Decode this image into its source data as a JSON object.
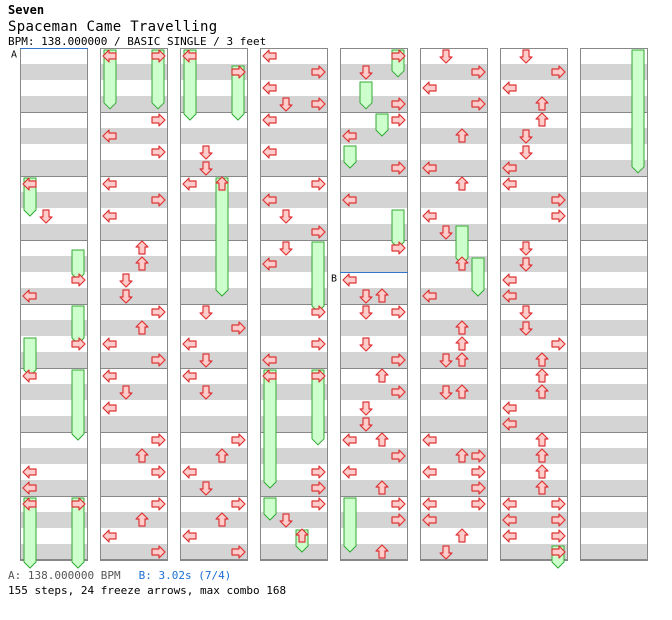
{
  "song": {
    "artist": "Seven",
    "title": "Spaceman Came Travelling",
    "info": "BPM: 138.000000 / BASIC SINGLE / 3 feet"
  },
  "markers": [
    {
      "label": "A",
      "column": 0,
      "beat": 0
    },
    {
      "label": "B",
      "column": 4,
      "beat": 14
    }
  ],
  "legend": {
    "a": "A: 138.000000 BPM",
    "b": "B: 3.02s (7/4)"
  },
  "summary": "155 steps, 24 freeze arrows, max combo 168",
  "colors": {
    "stripe": "#d4d4d4",
    "arrow_fill": "#ffcccc",
    "arrow_stroke": "#dd3333",
    "freeze_fill": "#ccffcc",
    "freeze_stroke": "#33aa33",
    "marker_line": "#3377cc"
  },
  "chart": {
    "beats_per_column": 32,
    "lanes": [
      "left",
      "down",
      "up",
      "right"
    ],
    "notes": [
      {
        "c": 0,
        "b": 8,
        "l": "left"
      },
      {
        "c": 0,
        "b": 10,
        "l": "down"
      },
      {
        "c": 0,
        "b": 14,
        "l": "right"
      },
      {
        "c": 0,
        "b": 15,
        "l": "left"
      },
      {
        "c": 0,
        "b": 18,
        "l": "right"
      },
      {
        "c": 0,
        "b": 20,
        "l": "left"
      },
      {
        "c": 0,
        "b": 26,
        "l": "left"
      },
      {
        "c": 0,
        "b": 27,
        "l": "left"
      },
      {
        "c": 0,
        "b": 28,
        "l": "left"
      },
      {
        "c": 0,
        "b": 28,
        "l": "right"
      },
      {
        "c": 1,
        "b": 0,
        "l": "left"
      },
      {
        "c": 1,
        "b": 0,
        "l": "right"
      },
      {
        "c": 1,
        "b": 4,
        "l": "right"
      },
      {
        "c": 1,
        "b": 5,
        "l": "left"
      },
      {
        "c": 1,
        "b": 6,
        "l": "right"
      },
      {
        "c": 1,
        "b": 8,
        "l": "left"
      },
      {
        "c": 1,
        "b": 9,
        "l": "right"
      },
      {
        "c": 1,
        "b": 10,
        "l": "left"
      },
      {
        "c": 1,
        "b": 12,
        "l": "up"
      },
      {
        "c": 1,
        "b": 13,
        "l": "up"
      },
      {
        "c": 1,
        "b": 14,
        "l": "down"
      },
      {
        "c": 1,
        "b": 15,
        "l": "down"
      },
      {
        "c": 1,
        "b": 16,
        "l": "right"
      },
      {
        "c": 1,
        "b": 17,
        "l": "up"
      },
      {
        "c": 1,
        "b": 18,
        "l": "left"
      },
      {
        "c": 1,
        "b": 19,
        "l": "right"
      },
      {
        "c": 1,
        "b": 20,
        "l": "left"
      },
      {
        "c": 1,
        "b": 21,
        "l": "down"
      },
      {
        "c": 1,
        "b": 22,
        "l": "left"
      },
      {
        "c": 1,
        "b": 24,
        "l": "right"
      },
      {
        "c": 1,
        "b": 25,
        "l": "up"
      },
      {
        "c": 1,
        "b": 26,
        "l": "right"
      },
      {
        "c": 1,
        "b": 28,
        "l": "right"
      },
      {
        "c": 1,
        "b": 29,
        "l": "up"
      },
      {
        "c": 1,
        "b": 30,
        "l": "left"
      },
      {
        "c": 1,
        "b": 31,
        "l": "right"
      },
      {
        "c": 2,
        "b": 0,
        "l": "left"
      },
      {
        "c": 2,
        "b": 1,
        "l": "right"
      },
      {
        "c": 2,
        "b": 6,
        "l": "down"
      },
      {
        "c": 2,
        "b": 7,
        "l": "down"
      },
      {
        "c": 2,
        "b": 8,
        "l": "left"
      },
      {
        "c": 2,
        "b": 8,
        "l": "up"
      },
      {
        "c": 2,
        "b": 16,
        "l": "down"
      },
      {
        "c": 2,
        "b": 17,
        "l": "right"
      },
      {
        "c": 2,
        "b": 18,
        "l": "left"
      },
      {
        "c": 2,
        "b": 19,
        "l": "down"
      },
      {
        "c": 2,
        "b": 20,
        "l": "left"
      },
      {
        "c": 2,
        "b": 21,
        "l": "down"
      },
      {
        "c": 2,
        "b": 24,
        "l": "right"
      },
      {
        "c": 2,
        "b": 25,
        "l": "up"
      },
      {
        "c": 2,
        "b": 26,
        "l": "left"
      },
      {
        "c": 2,
        "b": 27,
        "l": "down"
      },
      {
        "c": 2,
        "b": 28,
        "l": "right"
      },
      {
        "c": 2,
        "b": 29,
        "l": "up"
      },
      {
        "c": 2,
        "b": 30,
        "l": "left"
      },
      {
        "c": 2,
        "b": 31,
        "l": "right"
      },
      {
        "c": 3,
        "b": 0,
        "l": "left"
      },
      {
        "c": 3,
        "b": 1,
        "l": "right"
      },
      {
        "c": 3,
        "b": 2,
        "l": "left"
      },
      {
        "c": 3,
        "b": 3,
        "l": "down"
      },
      {
        "c": 3,
        "b": 3,
        "l": "right"
      },
      {
        "c": 3,
        "b": 4,
        "l": "left"
      },
      {
        "c": 3,
        "b": 6,
        "l": "left"
      },
      {
        "c": 3,
        "b": 8,
        "l": "right"
      },
      {
        "c": 3,
        "b": 9,
        "l": "left"
      },
      {
        "c": 3,
        "b": 10,
        "l": "down"
      },
      {
        "c": 3,
        "b": 11,
        "l": "right"
      },
      {
        "c": 3,
        "b": 12,
        "l": "down"
      },
      {
        "c": 3,
        "b": 13,
        "l": "left"
      },
      {
        "c": 3,
        "b": 16,
        "l": "right"
      },
      {
        "c": 3,
        "b": 18,
        "l": "right"
      },
      {
        "c": 3,
        "b": 19,
        "l": "left"
      },
      {
        "c": 3,
        "b": 20,
        "l": "left"
      },
      {
        "c": 3,
        "b": 20,
        "l": "right"
      },
      {
        "c": 3,
        "b": 26,
        "l": "right"
      },
      {
        "c": 3,
        "b": 27,
        "l": "right"
      },
      {
        "c": 3,
        "b": 28,
        "l": "right"
      },
      {
        "c": 3,
        "b": 29,
        "l": "down"
      },
      {
        "c": 3,
        "b": 30,
        "l": "up"
      },
      {
        "c": 4,
        "b": 0,
        "l": "right"
      },
      {
        "c": 4,
        "b": 1,
        "l": "down"
      },
      {
        "c": 4,
        "b": 3,
        "l": "right"
      },
      {
        "c": 4,
        "b": 4,
        "l": "right"
      },
      {
        "c": 4,
        "b": 5,
        "l": "left"
      },
      {
        "c": 4,
        "b": 7,
        "l": "right"
      },
      {
        "c": 4,
        "b": 9,
        "l": "left"
      },
      {
        "c": 4,
        "b": 12,
        "l": "right"
      },
      {
        "c": 4,
        "b": 14,
        "l": "left"
      },
      {
        "c": 4,
        "b": 15,
        "l": "down"
      },
      {
        "c": 4,
        "b": 15,
        "l": "up"
      },
      {
        "c": 4,
        "b": 16,
        "l": "down"
      },
      {
        "c": 4,
        "b": 16,
        "l": "right"
      },
      {
        "c": 4,
        "b": 18,
        "l": "down"
      },
      {
        "c": 4,
        "b": 19,
        "l": "right"
      },
      {
        "c": 4,
        "b": 20,
        "l": "up"
      },
      {
        "c": 4,
        "b": 21,
        "l": "right"
      },
      {
        "c": 4,
        "b": 22,
        "l": "down"
      },
      {
        "c": 4,
        "b": 23,
        "l": "down"
      },
      {
        "c": 4,
        "b": 24,
        "l": "left"
      },
      {
        "c": 4,
        "b": 24,
        "l": "up"
      },
      {
        "c": 4,
        "b": 25,
        "l": "right"
      },
      {
        "c": 4,
        "b": 26,
        "l": "left"
      },
      {
        "c": 4,
        "b": 27,
        "l": "up"
      },
      {
        "c": 4,
        "b": 28,
        "l": "right"
      },
      {
        "c": 4,
        "b": 29,
        "l": "right"
      },
      {
        "c": 4,
        "b": 31,
        "l": "up"
      },
      {
        "c": 5,
        "b": 0,
        "l": "down"
      },
      {
        "c": 5,
        "b": 1,
        "l": "right"
      },
      {
        "c": 5,
        "b": 2,
        "l": "left"
      },
      {
        "c": 5,
        "b": 3,
        "l": "right"
      },
      {
        "c": 5,
        "b": 5,
        "l": "up"
      },
      {
        "c": 5,
        "b": 7,
        "l": "left"
      },
      {
        "c": 5,
        "b": 8,
        "l": "up"
      },
      {
        "c": 5,
        "b": 10,
        "l": "left"
      },
      {
        "c": 5,
        "b": 11,
        "l": "down"
      },
      {
        "c": 5,
        "b": 13,
        "l": "up"
      },
      {
        "c": 5,
        "b": 15,
        "l": "left"
      },
      {
        "c": 5,
        "b": 17,
        "l": "up"
      },
      {
        "c": 5,
        "b": 18,
        "l": "up"
      },
      {
        "c": 5,
        "b": 19,
        "l": "down"
      },
      {
        "c": 5,
        "b": 19,
        "l": "up"
      },
      {
        "c": 5,
        "b": 21,
        "l": "down"
      },
      {
        "c": 5,
        "b": 21,
        "l": "up"
      },
      {
        "c": 5,
        "b": 24,
        "l": "left"
      },
      {
        "c": 5,
        "b": 25,
        "l": "right"
      },
      {
        "c": 5,
        "b": 25,
        "l": "up"
      },
      {
        "c": 5,
        "b": 26,
        "l": "left"
      },
      {
        "c": 5,
        "b": 26,
        "l": "right"
      },
      {
        "c": 5,
        "b": 27,
        "l": "right"
      },
      {
        "c": 5,
        "b": 28,
        "l": "right"
      },
      {
        "c": 5,
        "b": 28,
        "l": "left"
      },
      {
        "c": 5,
        "b": 29,
        "l": "left"
      },
      {
        "c": 5,
        "b": 30,
        "l": "up"
      },
      {
        "c": 5,
        "b": 31,
        "l": "down"
      },
      {
        "c": 6,
        "b": 0,
        "l": "down"
      },
      {
        "c": 6,
        "b": 1,
        "l": "right"
      },
      {
        "c": 6,
        "b": 2,
        "l": "left"
      },
      {
        "c": 6,
        "b": 3,
        "l": "up"
      },
      {
        "c": 6,
        "b": 4,
        "l": "up"
      },
      {
        "c": 6,
        "b": 5,
        "l": "down"
      },
      {
        "c": 6,
        "b": 6,
        "l": "down"
      },
      {
        "c": 6,
        "b": 7,
        "l": "left"
      },
      {
        "c": 6,
        "b": 8,
        "l": "left"
      },
      {
        "c": 6,
        "b": 9,
        "l": "right"
      },
      {
        "c": 6,
        "b": 10,
        "l": "right"
      },
      {
        "c": 6,
        "b": 12,
        "l": "down"
      },
      {
        "c": 6,
        "b": 13,
        "l": "down"
      },
      {
        "c": 6,
        "b": 14,
        "l": "left"
      },
      {
        "c": 6,
        "b": 15,
        "l": "left"
      },
      {
        "c": 6,
        "b": 16,
        "l": "down"
      },
      {
        "c": 6,
        "b": 17,
        "l": "down"
      },
      {
        "c": 6,
        "b": 18,
        "l": "right"
      },
      {
        "c": 6,
        "b": 19,
        "l": "up"
      },
      {
        "c": 6,
        "b": 20,
        "l": "up"
      },
      {
        "c": 6,
        "b": 21,
        "l": "up"
      },
      {
        "c": 6,
        "b": 22,
        "l": "left"
      },
      {
        "c": 6,
        "b": 23,
        "l": "left"
      },
      {
        "c": 6,
        "b": 24,
        "l": "up"
      },
      {
        "c": 6,
        "b": 25,
        "l": "up"
      },
      {
        "c": 6,
        "b": 26,
        "l": "up"
      },
      {
        "c": 6,
        "b": 27,
        "l": "up"
      },
      {
        "c": 6,
        "b": 28,
        "l": "left"
      },
      {
        "c": 6,
        "b": 28,
        "l": "right"
      },
      {
        "c": 6,
        "b": 29,
        "l": "left"
      },
      {
        "c": 6,
        "b": 29,
        "l": "right"
      },
      {
        "c": 6,
        "b": 30,
        "l": "left"
      },
      {
        "c": 6,
        "b": 30,
        "l": "right"
      },
      {
        "c": 6,
        "b": 31,
        "l": "right"
      }
    ],
    "freezes": [
      {
        "c": 0,
        "b": 8,
        "e": 10.5,
        "l": "left"
      },
      {
        "c": 0,
        "b": 12.5,
        "e": 14.5,
        "l": "right"
      },
      {
        "c": 0,
        "b": 16,
        "e": 18.5,
        "l": "right"
      },
      {
        "c": 0,
        "b": 18,
        "e": 20.5,
        "l": "left"
      },
      {
        "c": 0,
        "b": 20,
        "e": 24.5,
        "l": "right"
      },
      {
        "c": 0,
        "b": 28,
        "e": 33,
        "l": "left"
      },
      {
        "c": 0,
        "b": 28,
        "e": 33,
        "l": "right"
      },
      {
        "c": 1,
        "b": 0,
        "e": 3.8,
        "l": "left"
      },
      {
        "c": 1,
        "b": 0,
        "e": 3.8,
        "l": "right"
      },
      {
        "c": 2,
        "b": 0,
        "e": 4.5,
        "l": "left"
      },
      {
        "c": 2,
        "b": 1,
        "e": 4.5,
        "l": "right"
      },
      {
        "c": 2,
        "b": 8,
        "e": 15.5,
        "l": "up"
      },
      {
        "c": 3,
        "b": 12,
        "e": 16.5,
        "l": "right"
      },
      {
        "c": 3,
        "b": 20,
        "e": 27.5,
        "l": "left"
      },
      {
        "c": 3,
        "b": 20,
        "e": 24.8,
        "l": "right"
      },
      {
        "c": 3,
        "b": 28,
        "e": 29.5,
        "l": "left"
      },
      {
        "c": 3,
        "b": 30,
        "e": 31.5,
        "l": "up"
      },
      {
        "c": 4,
        "b": 0,
        "e": 1.8,
        "l": "right"
      },
      {
        "c": 4,
        "b": 2,
        "e": 3.8,
        "l": "down"
      },
      {
        "c": 4,
        "b": 4,
        "e": 5.5,
        "l": "up"
      },
      {
        "c": 4,
        "b": 6,
        "e": 7.5,
        "l": "left"
      },
      {
        "c": 4,
        "b": 10,
        "e": 12.5,
        "l": "right"
      },
      {
        "c": 4,
        "b": 28,
        "e": 31.5,
        "l": "left"
      },
      {
        "c": 5,
        "b": 11,
        "e": 13.5,
        "l": "up"
      },
      {
        "c": 5,
        "b": 13,
        "e": 15.5,
        "l": "right"
      },
      {
        "c": 6,
        "b": 31,
        "e": 33,
        "l": "right"
      },
      {
        "c": 7,
        "b": 0,
        "e": 7.8,
        "l": "right"
      }
    ]
  }
}
